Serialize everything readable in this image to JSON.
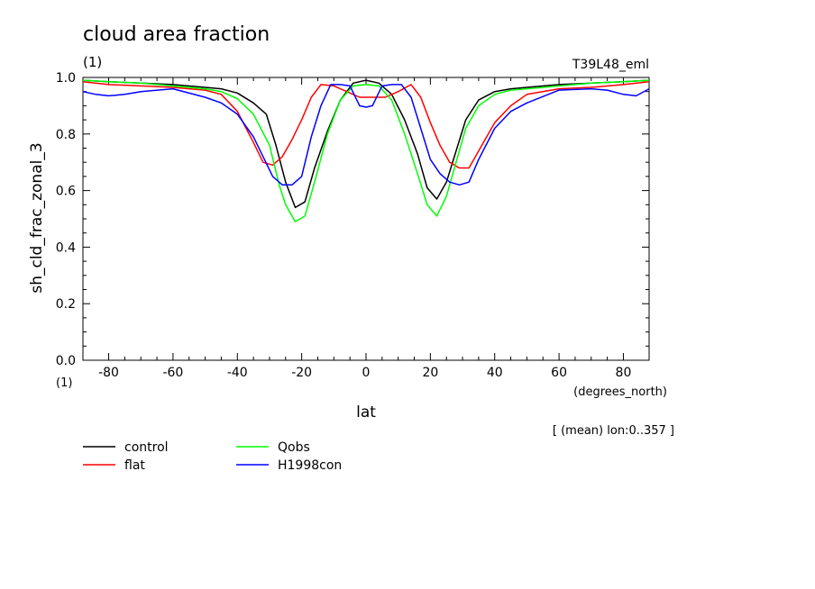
{
  "title": "cloud area fraction",
  "units_top": "(1)",
  "experiment": "T39L48_eml",
  "units_bottom": "(1)",
  "x_units": "(degrees_north)",
  "mean_note": "[ (mean) lon:0..357 ]",
  "chart_data": {
    "type": "line",
    "title": "cloud area fraction",
    "xlabel": "lat",
    "ylabel": "sh_cld_frac_zonal_3",
    "xlim": [
      -88,
      88
    ],
    "ylim": [
      0,
      1
    ],
    "xticks": [
      -80,
      -60,
      -40,
      -20,
      0,
      20,
      40,
      60,
      80
    ],
    "xtick_labels": [
      "-80",
      "-60",
      "-40",
      "-20",
      "0",
      "20",
      "40",
      "60",
      "80"
    ],
    "yticks": [
      0,
      0.2,
      0.4,
      0.6,
      0.8,
      1.0
    ],
    "ytick_labels": [
      "0.0",
      "0.2",
      "0.4",
      "0.6",
      "0.8",
      "1.0"
    ],
    "grid": false,
    "legend_position": "bottom-left",
    "series": [
      {
        "name": "control",
        "color": "#000000",
        "x": [
          -88,
          -80,
          -70,
          -60,
          -50,
          -45,
          -40,
          -35,
          -31,
          -28,
          -25,
          -22,
          -19,
          -16,
          -12,
          -8,
          -4,
          0,
          4,
          8,
          12,
          16,
          19,
          22,
          25,
          28,
          31,
          35,
          40,
          45,
          50,
          60,
          70,
          80,
          88
        ],
        "y": [
          0.99,
          0.985,
          0.98,
          0.975,
          0.965,
          0.96,
          0.945,
          0.91,
          0.87,
          0.76,
          0.63,
          0.54,
          0.56,
          0.68,
          0.81,
          0.92,
          0.98,
          0.99,
          0.98,
          0.94,
          0.85,
          0.73,
          0.61,
          0.57,
          0.63,
          0.74,
          0.85,
          0.92,
          0.95,
          0.96,
          0.965,
          0.975,
          0.98,
          0.985,
          0.99
        ]
      },
      {
        "name": "flat",
        "color": "#ff0000",
        "x": [
          -88,
          -80,
          -70,
          -60,
          -50,
          -45,
          -40,
          -35,
          -32,
          -29,
          -26,
          -23,
          -20,
          -17,
          -14,
          -10,
          -6,
          -2,
          2,
          6,
          10,
          14,
          17,
          20,
          23,
          26,
          29,
          32,
          35,
          40,
          45,
          50,
          60,
          70,
          80,
          88
        ],
        "y": [
          0.985,
          0.975,
          0.97,
          0.965,
          0.955,
          0.94,
          0.88,
          0.77,
          0.7,
          0.69,
          0.72,
          0.78,
          0.85,
          0.93,
          0.975,
          0.97,
          0.95,
          0.93,
          0.93,
          0.93,
          0.95,
          0.975,
          0.93,
          0.84,
          0.76,
          0.7,
          0.68,
          0.68,
          0.74,
          0.84,
          0.9,
          0.94,
          0.96,
          0.965,
          0.975,
          0.985
        ]
      },
      {
        "name": "Qobs",
        "color": "#00ff00",
        "x": [
          -88,
          -80,
          -70,
          -60,
          -50,
          -45,
          -40,
          -35,
          -30,
          -27,
          -25,
          -22,
          -19,
          -16,
          -12,
          -8,
          -4,
          0,
          4,
          8,
          12,
          16,
          19,
          22,
          25,
          28,
          31,
          35,
          40,
          45,
          50,
          60,
          70,
          80,
          88
        ],
        "y": [
          0.99,
          0.985,
          0.98,
          0.97,
          0.96,
          0.95,
          0.925,
          0.87,
          0.76,
          0.62,
          0.55,
          0.49,
          0.51,
          0.63,
          0.8,
          0.92,
          0.97,
          0.975,
          0.97,
          0.92,
          0.8,
          0.66,
          0.55,
          0.51,
          0.58,
          0.7,
          0.82,
          0.9,
          0.94,
          0.955,
          0.96,
          0.97,
          0.98,
          0.985,
          0.99
        ]
      },
      {
        "name": "H1998con",
        "color": "#0000ff",
        "x": [
          -88,
          -84,
          -80,
          -75,
          -70,
          -60,
          -50,
          -45,
          -40,
          -35,
          -32,
          -29,
          -26,
          -23,
          -20,
          -17,
          -14,
          -11,
          -8,
          -5,
          -2,
          0,
          2,
          5,
          8,
          11,
          14,
          17,
          20,
          23,
          26,
          29,
          32,
          35,
          40,
          45,
          50,
          60,
          70,
          75,
          80,
          84,
          88
        ],
        "y": [
          0.95,
          0.94,
          0.935,
          0.94,
          0.95,
          0.96,
          0.93,
          0.91,
          0.87,
          0.79,
          0.72,
          0.65,
          0.62,
          0.62,
          0.65,
          0.79,
          0.9,
          0.975,
          0.975,
          0.97,
          0.9,
          0.895,
          0.9,
          0.97,
          0.975,
          0.975,
          0.93,
          0.82,
          0.71,
          0.66,
          0.63,
          0.62,
          0.63,
          0.71,
          0.82,
          0.88,
          0.91,
          0.955,
          0.96,
          0.955,
          0.94,
          0.935,
          0.96
        ]
      }
    ]
  }
}
